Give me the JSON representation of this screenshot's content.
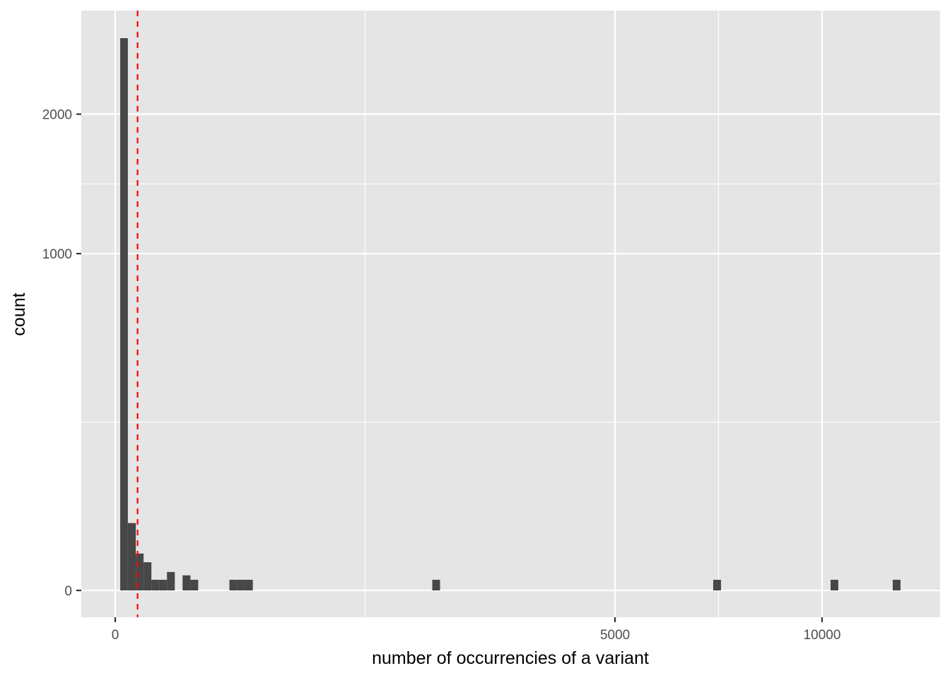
{
  "chart_data": {
    "type": "bar",
    "subtype": "histogram",
    "xlabel": "number of occurrencies of a variant",
    "ylabel": "count",
    "x_scale": "sqrt",
    "y_scale": "sqrt",
    "xlim": [
      0,
      13600
    ],
    "ylim": [
      0,
      2960
    ],
    "x_ticks": [
      0,
      5000,
      10000
    ],
    "x_tick_labels": [
      "0",
      "5000",
      "10000"
    ],
    "y_ticks": [
      0,
      1000,
      2000
    ],
    "y_tick_labels": [
      "0",
      "1000",
      "2000"
    ],
    "grid": true,
    "bar_color": "#474747",
    "panel_background": "#e5e5e5",
    "bins": [
      {
        "xmin": 0.5,
        "xmax": 3.2,
        "count": 2689
      },
      {
        "xmin": 3.2,
        "xmax": 8.5,
        "count": 40
      },
      {
        "xmin": 8.5,
        "xmax": 16.1,
        "count": 12
      },
      {
        "xmin": 16.1,
        "xmax": 26.2,
        "count": 7
      },
      {
        "xmin": 26.2,
        "xmax": 38.7,
        "count": 1
      },
      {
        "xmin": 38.7,
        "xmax": 53.6,
        "count": 1
      },
      {
        "xmin": 53.6,
        "xmax": 71.1,
        "count": 3
      },
      {
        "xmin": 90.8,
        "xmax": 113.2,
        "count": 2
      },
      {
        "xmin": 113.2,
        "xmax": 137.8,
        "count": 1
      },
      {
        "xmin": 261,
        "xmax": 298,
        "count": 1
      },
      {
        "xmin": 298,
        "xmax": 337,
        "count": 1
      },
      {
        "xmin": 337,
        "xmax": 379,
        "count": 1
      },
      {
        "xmin": 2012,
        "xmax": 2112,
        "count": 1
      },
      {
        "xmin": 7157,
        "xmax": 7345,
        "count": 1
      },
      {
        "xmin": 10242,
        "xmax": 10465,
        "count": 1
      },
      {
        "xmin": 12100,
        "xmax": 12343,
        "count": 1
      }
    ],
    "vline": {
      "x": 10,
      "color": "#ff0000",
      "style": "dashed"
    }
  }
}
